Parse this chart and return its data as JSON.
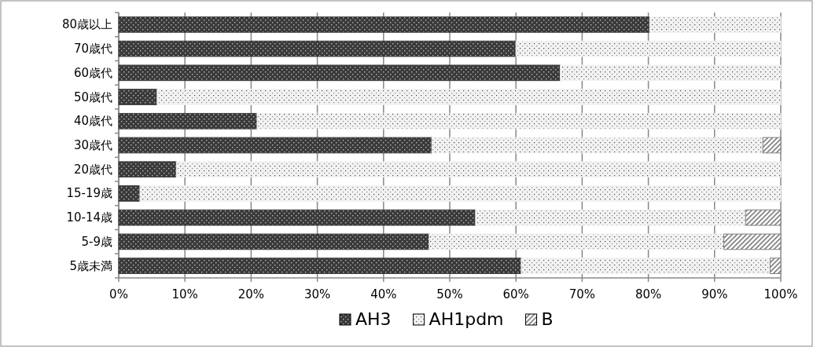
{
  "chart_data": {
    "type": "bar",
    "orientation": "horizontal",
    "stacked": true,
    "categories": [
      "80歳以上",
      "70歳代",
      "60歳代",
      "50歳代",
      "40歳代",
      "30歳代",
      "20歳代",
      "15-19歳",
      "10-14歳",
      "5-9歳",
      "5歳未満"
    ],
    "series": [
      {
        "name": "AH3",
        "color": "#3a3a3a",
        "values": [
          80.2,
          60,
          66.7,
          5.8,
          20.9,
          47.3,
          8.7,
          3.2,
          53.9,
          46.9,
          60.8
        ]
      },
      {
        "name": "AH1pdm",
        "color": "#f2f2f2",
        "values": [
          19.8,
          40,
          33.3,
          94.2,
          79.1,
          50,
          91.3,
          96.8,
          40.8,
          44.5,
          37.6
        ]
      },
      {
        "name": "B",
        "color": "#808080",
        "values": [
          null,
          null,
          null,
          null,
          null,
          2.7,
          null,
          null,
          5.3,
          8.6,
          1.6
        ]
      }
    ],
    "xlim": [
      0,
      100
    ],
    "xticks": [
      {
        "value": 0,
        "label": "0%"
      },
      {
        "value": 10,
        "label": "10%"
      },
      {
        "value": 20,
        "label": "20%"
      },
      {
        "value": 30,
        "label": "30%"
      },
      {
        "value": 40,
        "label": "40%"
      },
      {
        "value": 50,
        "label": "50%"
      },
      {
        "value": 60,
        "label": "60%"
      },
      {
        "value": 70,
        "label": "70%"
      },
      {
        "value": 80,
        "label": "80%"
      },
      {
        "value": 90,
        "label": "90%"
      },
      {
        "value": 100,
        "label": "100%"
      }
    ],
    "grid": "x",
    "legend": "bottom"
  }
}
